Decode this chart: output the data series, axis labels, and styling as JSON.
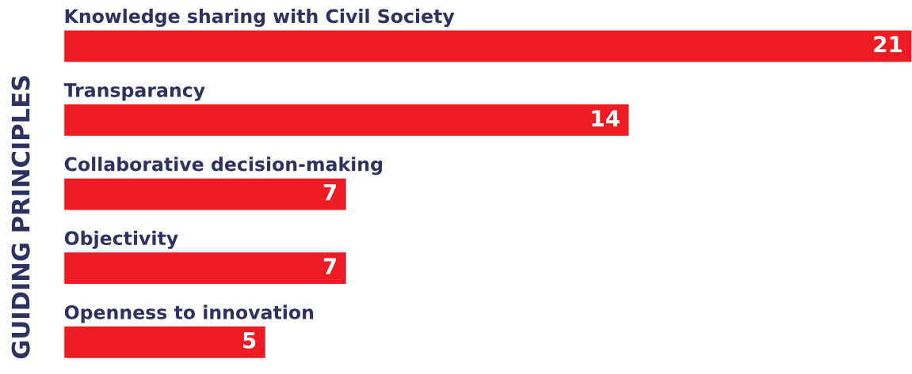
{
  "chart_data": {
    "type": "bar",
    "orientation": "horizontal",
    "ylabel": "GUIDING PRINCIPLES",
    "categories": [
      "Knowledge sharing with Civil Society",
      "Transparancy",
      "Collaborative decision-making",
      "Objectivity",
      "Openness to innovation"
    ],
    "values": [
      21,
      14,
      7,
      7,
      5
    ],
    "color": "#ed1c24",
    "data_labels": true
  }
}
